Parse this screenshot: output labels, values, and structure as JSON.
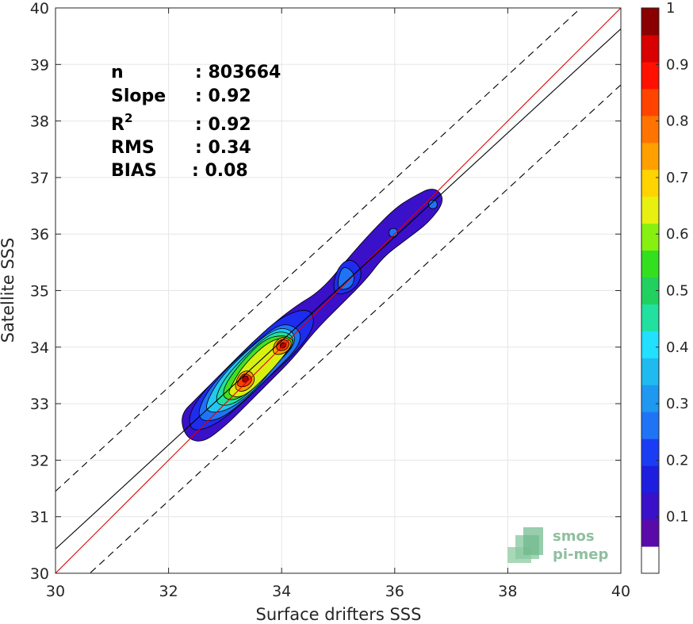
{
  "chart_data": {
    "type": "heatmap",
    "xlabel": "Surface drifters SSS",
    "ylabel": "Satellite SSS",
    "xlim": [
      30,
      40
    ],
    "ylim": [
      30,
      40
    ],
    "xticks": [
      "30",
      "32",
      "34",
      "36",
      "38",
      "40"
    ],
    "yticks": [
      "30",
      "31",
      "32",
      "33",
      "34",
      "35",
      "36",
      "37",
      "38",
      "39",
      "40"
    ],
    "grid": true,
    "stats": [
      {
        "label": "n",
        "value": ": 803664"
      },
      {
        "label": "Slope",
        "value": ": 0.92"
      },
      {
        "label": "R",
        "sup": "2",
        "value": ": 0.92"
      },
      {
        "label": "RMS",
        "value": ": 0.34"
      },
      {
        "label": "BIAS",
        "value": ": 0.08"
      }
    ],
    "lines": [
      {
        "kind": "identity",
        "color": "#e00000",
        "style": "solid",
        "slope": 1,
        "intercept": 0
      },
      {
        "kind": "regression",
        "color": "#000000",
        "style": "solid",
        "slope": 0.92,
        "intercept": 2.83
      },
      {
        "kind": "bound-upper",
        "color": "#000000",
        "style": "dashed",
        "slope": 0.92,
        "intercept": 3.85
      },
      {
        "kind": "bound-lower",
        "color": "#000000",
        "style": "dashed",
        "slope": 0.92,
        "intercept": 1.84
      }
    ],
    "density_levels": [
      {
        "level": 0.05,
        "color": "#3a10c8",
        "points": [
          [
            32.3,
            32.4
          ],
          [
            32.6,
            32.3
          ],
          [
            33.0,
            32.6
          ],
          [
            33.4,
            33.0
          ],
          [
            33.8,
            33.4
          ],
          [
            34.2,
            33.8
          ],
          [
            34.6,
            34.3
          ],
          [
            35.0,
            34.7
          ],
          [
            35.5,
            35.2
          ],
          [
            35.8,
            35.6
          ],
          [
            36.2,
            35.9
          ],
          [
            36.6,
            36.2
          ],
          [
            36.9,
            36.6
          ],
          [
            36.7,
            36.85
          ],
          [
            36.3,
            36.65
          ],
          [
            36.0,
            36.45
          ],
          [
            35.6,
            36.05
          ],
          [
            35.2,
            35.6
          ],
          [
            34.7,
            35.0
          ],
          [
            34.2,
            34.7
          ],
          [
            33.6,
            34.2
          ],
          [
            33.0,
            33.6
          ],
          [
            32.5,
            33.1
          ],
          [
            32.2,
            32.8
          ]
        ]
      },
      {
        "level": 0.15,
        "color": "#1d2cef",
        "points": [
          [
            32.4,
            32.5
          ],
          [
            32.8,
            32.6
          ],
          [
            33.3,
            33.0
          ],
          [
            33.8,
            33.5
          ],
          [
            34.3,
            33.95
          ],
          [
            34.6,
            34.4
          ],
          [
            34.5,
            34.7
          ],
          [
            34.0,
            34.55
          ],
          [
            33.5,
            34.1
          ],
          [
            33.0,
            33.6
          ],
          [
            32.6,
            33.2
          ],
          [
            32.35,
            32.8
          ]
        ]
      },
      {
        "level": 0.15,
        "color": "#1d2cef",
        "points": [
          [
            34.9,
            34.9
          ],
          [
            35.3,
            35.0
          ],
          [
            35.45,
            35.35
          ],
          [
            35.2,
            35.6
          ],
          [
            34.95,
            35.35
          ]
        ]
      },
      {
        "level": 0.25,
        "color": "#1f74f5",
        "points": [
          [
            32.5,
            32.7
          ],
          [
            32.9,
            32.7
          ],
          [
            33.4,
            33.1
          ],
          [
            33.9,
            33.6
          ],
          [
            34.3,
            34.0
          ],
          [
            34.35,
            34.3
          ],
          [
            34.0,
            34.45
          ],
          [
            33.5,
            34.05
          ],
          [
            33.0,
            33.6
          ],
          [
            32.6,
            33.1
          ]
        ]
      },
      {
        "level": 0.25,
        "color": "#1f74f5",
        "points": [
          [
            35.0,
            35.0
          ],
          [
            35.25,
            35.05
          ],
          [
            35.3,
            35.3
          ],
          [
            35.1,
            35.45
          ],
          [
            35.0,
            35.25
          ]
        ]
      },
      {
        "level": 0.25,
        "color": "#1f74f5",
        "points": [
          [
            35.9,
            35.95
          ],
          [
            36.05,
            35.95
          ],
          [
            36.05,
            36.1
          ],
          [
            35.9,
            36.1
          ]
        ]
      },
      {
        "level": 0.25,
        "color": "#1f74f5",
        "points": [
          [
            36.6,
            36.45
          ],
          [
            36.75,
            36.45
          ],
          [
            36.75,
            36.6
          ],
          [
            36.6,
            36.6
          ]
        ]
      },
      {
        "level": 0.35,
        "color": "#22c8f0",
        "points": [
          [
            32.65,
            32.85
          ],
          [
            33.0,
            32.85
          ],
          [
            33.5,
            33.2
          ],
          [
            33.9,
            33.7
          ],
          [
            34.25,
            34.05
          ],
          [
            34.2,
            34.3
          ],
          [
            33.9,
            34.35
          ],
          [
            33.4,
            33.95
          ],
          [
            32.95,
            33.5
          ],
          [
            32.7,
            33.1
          ]
        ]
      },
      {
        "level": 0.45,
        "color": "#22e0a0",
        "points": [
          [
            32.8,
            33.0
          ],
          [
            33.1,
            32.95
          ],
          [
            33.5,
            33.25
          ],
          [
            33.95,
            33.75
          ],
          [
            34.25,
            34.1
          ],
          [
            34.1,
            34.28
          ],
          [
            33.8,
            34.25
          ],
          [
            33.35,
            33.85
          ],
          [
            32.95,
            33.4
          ]
        ]
      },
      {
        "level": 0.55,
        "color": "#44e020",
        "points": [
          [
            32.95,
            33.1
          ],
          [
            33.2,
            33.05
          ],
          [
            33.6,
            33.35
          ],
          [
            34.0,
            33.8
          ],
          [
            34.25,
            34.1
          ],
          [
            34.05,
            34.22
          ],
          [
            33.7,
            34.15
          ],
          [
            33.3,
            33.75
          ],
          [
            33.0,
            33.35
          ]
        ]
      },
      {
        "level": 0.65,
        "color": "#d8f010",
        "points": [
          [
            33.05,
            33.15
          ],
          [
            33.3,
            33.1
          ],
          [
            33.65,
            33.4
          ],
          [
            34.05,
            33.85
          ],
          [
            34.2,
            34.1
          ],
          [
            34.0,
            34.18
          ],
          [
            33.7,
            34.05
          ],
          [
            33.3,
            33.65
          ],
          [
            33.1,
            33.3
          ]
        ]
      },
      {
        "level": 0.75,
        "color": "#ff9a00",
        "points": [
          [
            33.15,
            33.25
          ],
          [
            33.35,
            33.2
          ],
          [
            33.55,
            33.4
          ],
          [
            33.45,
            33.6
          ],
          [
            33.25,
            33.55
          ]
        ]
      },
      {
        "level": 0.75,
        "color": "#ff9a00",
        "points": [
          [
            33.85,
            33.85
          ],
          [
            34.1,
            33.9
          ],
          [
            34.2,
            34.1
          ],
          [
            34.0,
            34.2
          ],
          [
            33.85,
            34.05
          ]
        ]
      },
      {
        "level": 0.85,
        "color": "#ff3c00",
        "points": [
          [
            33.2,
            33.3
          ],
          [
            33.4,
            33.3
          ],
          [
            33.5,
            33.45
          ],
          [
            33.35,
            33.55
          ],
          [
            33.25,
            33.45
          ]
        ]
      },
      {
        "level": 0.85,
        "color": "#ff3c00",
        "points": [
          [
            33.92,
            33.93
          ],
          [
            34.1,
            33.95
          ],
          [
            34.15,
            34.1
          ],
          [
            34.0,
            34.15
          ],
          [
            33.9,
            34.05
          ]
        ]
      },
      {
        "level": 0.95,
        "color": "#a80000",
        "points": [
          [
            33.3,
            33.38
          ],
          [
            33.4,
            33.38
          ],
          [
            33.42,
            33.48
          ],
          [
            33.32,
            33.5
          ]
        ]
      },
      {
        "level": 0.95,
        "color": "#a80000",
        "points": [
          [
            33.97,
            33.98
          ],
          [
            34.07,
            33.99
          ],
          [
            34.08,
            34.08
          ],
          [
            33.98,
            34.08
          ]
        ]
      }
    ],
    "colorbar": {
      "ticks": [
        "0.1",
        "0.2",
        "0.3",
        "0.4",
        "0.5",
        "0.6",
        "0.7",
        "0.8",
        "0.9",
        "1"
      ],
      "colors": [
        "#ffffff",
        "#5a0aa8",
        "#3a10c8",
        "#1d1ee0",
        "#1b3cf5",
        "#1f74f5",
        "#1e98f0",
        "#1fbaf0",
        "#22e0ff",
        "#22e0a0",
        "#22d060",
        "#33e020",
        "#88f010",
        "#e8f010",
        "#ffd400",
        "#ffa000",
        "#ff7400",
        "#ff4400",
        "#ff1000",
        "#d80000",
        "#8a0000"
      ]
    }
  },
  "logo": {
    "line1": "smos",
    "line2": "pi-mep"
  },
  "colors": {
    "identity": "#e00000",
    "frame": "#262626",
    "grid": "#e6e6e6"
  }
}
